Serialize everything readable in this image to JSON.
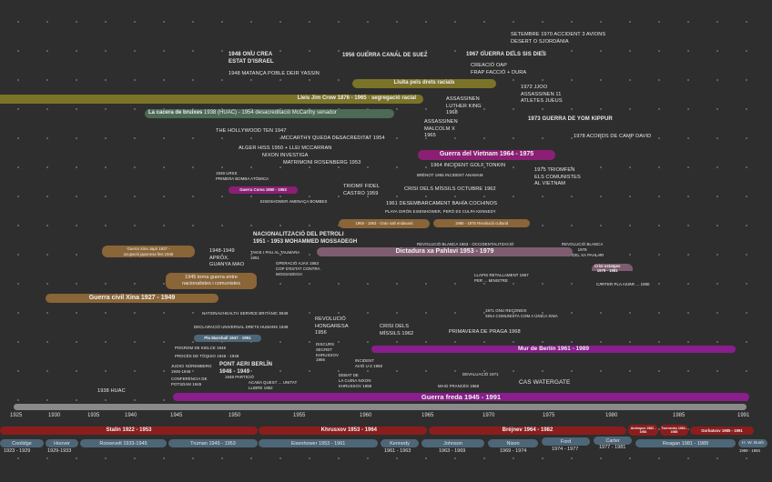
{
  "colors": {
    "background": "#2e2e2e",
    "civil_rights": "#7b7328",
    "mccarthyism": "#4c6a56",
    "vietnam": "#8b1f74",
    "cold_war": "#891e8c",
    "china": "#8a6538",
    "iran": "#7e5d70",
    "usa": "#4d6678",
    "ussr": "#8c1d1d",
    "timeline": "#8a8a8a"
  },
  "events": {
    "accident_avions": "Setembre 1970 accident 3 avions\ndesert o sjordània",
    "onu_israel": "1948 ONU crea\nestat d'Israel",
    "suez": "1956 Guerra canal de Suez",
    "sis_dies": "1967 Guerra dels sis dies",
    "deir_yassin": "1948 matança poble Deir Yassin",
    "oap": "Creació OAP\nFrap facció + dura",
    "jjoo": "1972 JJOO\nassassinen 11\natletes jueus",
    "luther_king": "Assassinen\nLuther King\n1968",
    "yom_kippur": "1973 Guerra de Yom Kippur",
    "malcolm_x": "Assassinen\nMalcolm X\n1965",
    "hollywood_ten": "The Hollywood Ten 1947",
    "mccarthy_desacreditat": "McCarthy queda desacreditat 1954",
    "camp_david": "1978 Acords de Camp David",
    "alger_hiss": "Alger Hiss 1950 + llei McCarran\nNixon investiga",
    "rosenberg": "Matrimoni Rosenberg 1953",
    "golf_tonkin": "1964 incident golf Tonkin",
    "triomfen": "1975 triomfen\nels comunistes\nal Vietnam",
    "urss_bomba": "1949 URSS\nprimera bomba atòmica",
    "incident_1965": "Brènot 1965 incident anamam",
    "crisi_missils_oct": "Crisi dels míssils octubre 1962",
    "fidel": "Triomf Fidel\nCastro 1959",
    "eisenhower_amenaca": "Eisenhower amenaça bombes",
    "cochinos": "1961 desembarcament Bahía Cochinos",
    "playa_giron": "Playa Girón Eisenhower, però es culpa Kennedy",
    "petroli": "Nacionalització del petroli\n1951 - 1953 Mohammed Mossadegh",
    "revolucio_blanca_63": "Revolució blanca 1963 - occidentalització",
    "revolucio_blanca_78": "Revolució blanca\n1978\nexili del xa Pahlavi",
    "mao": "1948-1949\naprox.\nguanya Mao",
    "takis": "Takis i pau al taumara\n1951",
    "ajax": "Operació Ajax 1953\ncop d'estat contra\nMossadegh",
    "llapis": "Llapis retallament 1967\nper ... ministre",
    "carter_pla": "Carter pla asiar ... 1980",
    "nhs": "National Health Service britànic 1948",
    "hongaresa": "Revolució\nhongaresa\n1956",
    "onu_xina": "1971 ONU reconeix\nXina comunista com a única Xina",
    "drets_humans": "Declaració universal drets humans 1948",
    "crisi_missils": "Crisi dels\nmíssils 1962",
    "praga": "Primavera de Praga 1968",
    "discurs_secret": "Discurs\nsecret\nKhrusxov\n1956",
    "kielce": "Pogrom de Kielce 1946",
    "toquio": "Procés de Tòquio 1946 - 1948",
    "u2": "Incident\navió U-2 1960",
    "pont_aeri": "Pont aeri Berlín\n1948 - 1949",
    "nuremberg": "Judici Nüremberg\n1945-1946",
    "particio": "1948 partició",
    "cuina": "Debat de\nla cuina Nixon\nKhrusxov 1959",
    "desufic": "Devaluació 1971",
    "potsdam": "Conferència de\nPotsdam 1945",
    "maig_frances": "Maig francès 1968",
    "watergate": "Cas Watergate",
    "quest": "Acaba quest ... unitat\nllibre 1952",
    "huac": "1938 HUAC"
  },
  "bars": {
    "drets_racials": "Lluita pels drets racials",
    "jim_crow": "Lleis Jim Crow 1876 - 1965 · segregació racial",
    "cacera_title": "La cacera de bruixes",
    "cacera_rest": " 1938 (HUAC) - 1954 desacreditació McCarthy senador",
    "vietnam": "Guerra del Vietnam 1964 - 1975",
    "corea": "Guerra Corea 1950 - 1953",
    "gran_salt": "1955 - 1963 · Gran salt endavant",
    "revolucio_cultural": "1966 - 1976 Revolució cultural",
    "xina_japo": "Guerra Xina Japó 1937 -\nocupació japonesa fins 1945",
    "pahlavi": "Dictadura xa Pahlavi 1953 - 1979",
    "ostatges": "Crisi ostatges\n1979 - 1981",
    "torna_guerra": "1945 torna guerra entre\nnacionalistes i comunistes",
    "civil_xina": "Guerra civil Xina 1927 - 1949",
    "marshall": "Pla Marshall 1947 - 1951",
    "mur_berlin": "Mur de Berlín 1961 - 1989",
    "guerra_freda": "Guerra freda 1945 - 1991"
  },
  "axis": {
    "years": [
      "1925",
      "1930",
      "1935",
      "1940",
      "1945",
      "1950",
      "1955",
      "1960",
      "1965",
      "1970",
      "1975",
      "1980",
      "1985",
      "1991"
    ]
  },
  "soviet_leaders": [
    {
      "label": "Stalin 1922 - 1953"
    },
    {
      "label": "Khrusxov 1953 - 1964"
    },
    {
      "label": "Bréjnev 1964 - 1982"
    },
    {
      "label": "Andropov 1982 - 1984"
    },
    {
      "label": "Txernenko 1984 - 1985"
    },
    {
      "label": "Gorbatxov 1985 - 1991"
    }
  ],
  "us_presidents": [
    {
      "name": "Coolidge",
      "years": "1923 - 1929"
    },
    {
      "name": "Hoover",
      "years": "1929-1933"
    },
    {
      "name": "Roosevelt 1933-1945"
    },
    {
      "name": "Truman 1945 - 1953"
    },
    {
      "name": "Eisenhower 1953 - 1961"
    },
    {
      "name": "Kennedy",
      "years": "1961 - 1963"
    },
    {
      "name": "Johnson",
      "years": "1963 - 1969"
    },
    {
      "name": "Nixon",
      "years": "1969 - 1974"
    },
    {
      "name": "Ford",
      "years": "1974 - 1977"
    },
    {
      "name": "Carter",
      "years": "1977 - 1981"
    },
    {
      "name": "Reagan 1981 - 1989"
    },
    {
      "name": "H. W. Bush",
      "years": "1989 - 1993"
    }
  ]
}
